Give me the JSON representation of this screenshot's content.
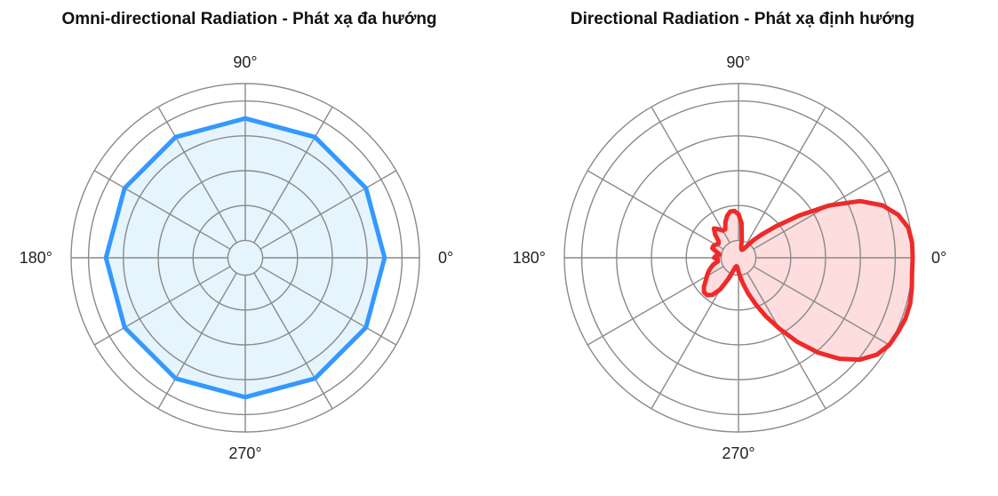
{
  "chart_data": [
    {
      "type": "polar",
      "title": "Omni-directional Radiation - Phát xạ đa hướng",
      "angle_tick_labels": [
        "0°",
        "90°",
        "180°",
        "270°"
      ],
      "angle_tick_values": [
        0,
        90,
        180,
        270
      ],
      "radial_range": [
        0,
        1
      ],
      "radial_rings": [
        0.1,
        0.3,
        0.5,
        0.7,
        0.9,
        1.0
      ],
      "spokes_every_deg": 30,
      "grid": true,
      "series": [
        {
          "color": "#3399ff",
          "fill": "#e6f4fd",
          "theta": [
            0,
            30,
            60,
            90,
            120,
            150,
            180,
            210,
            240,
            270,
            300,
            330
          ],
          "r": [
            0.8,
            0.8,
            0.8,
            0.8,
            0.8,
            0.8,
            0.8,
            0.8,
            0.8,
            0.8,
            0.8,
            0.8
          ]
        }
      ]
    },
    {
      "type": "polar",
      "title": "Directional Radiation - Phát xạ định hướng",
      "angle_tick_labels": [
        "0°",
        "90°",
        "180°",
        "270°"
      ],
      "angle_tick_values": [
        0,
        90,
        180,
        270
      ],
      "radial_range": [
        0,
        1
      ],
      "radial_rings": [
        0.1,
        0.3,
        0.5,
        0.7,
        0.9,
        1.0
      ],
      "spokes_every_deg": 30,
      "grid": true,
      "series": [
        {
          "color": "#ee2a2a",
          "fill": "#fddddd",
          "theta": [
            0,
            5,
            10,
            15,
            20,
            25,
            30,
            35,
            40,
            45,
            50,
            55,
            60,
            65,
            70,
            75,
            80,
            85,
            90,
            95,
            100,
            105,
            110,
            115,
            120,
            125,
            130,
            135,
            140,
            145,
            150,
            155,
            160,
            165,
            170,
            175,
            180,
            185,
            190,
            195,
            200,
            205,
            210,
            215,
            220,
            225,
            230,
            235,
            240,
            245,
            250,
            255,
            260,
            265,
            270,
            275,
            280,
            285,
            290,
            295,
            300,
            305,
            310,
            315,
            320,
            325,
            330,
            335,
            340,
            345,
            350,
            355
          ],
          "r": [
            1.0,
            1.0,
            0.99,
            0.95,
            0.88,
            0.77,
            0.6,
            0.42,
            0.28,
            0.19,
            0.13,
            0.08,
            0.06,
            0.05,
            0.05,
            0.06,
            0.11,
            0.2,
            0.25,
            0.27,
            0.27,
            0.25,
            0.22,
            0.18,
            0.18,
            0.2,
            0.22,
            0.19,
            0.15,
            0.14,
            0.15,
            0.16,
            0.16,
            0.13,
            0.11,
            0.13,
            0.14,
            0.12,
            0.12,
            0.15,
            0.17,
            0.19,
            0.21,
            0.23,
            0.26,
            0.28,
            0.28,
            0.26,
            0.21,
            0.13,
            0.06,
            0.05,
            0.05,
            0.06,
            0.08,
            0.11,
            0.15,
            0.21,
            0.28,
            0.37,
            0.47,
            0.59,
            0.71,
            0.82,
            0.91,
            0.97,
            1.0,
            1.01,
            1.02,
            1.02,
            1.01,
            1.0
          ]
        }
      ]
    }
  ]
}
